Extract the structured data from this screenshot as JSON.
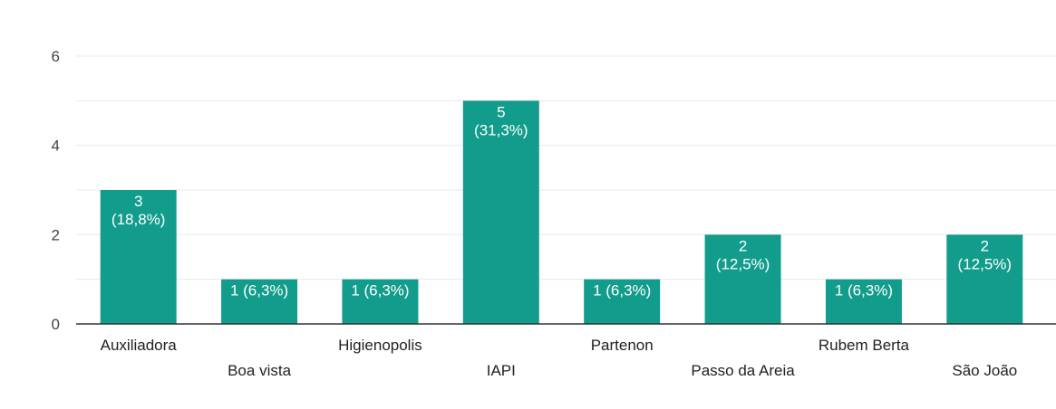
{
  "chart_data": {
    "type": "bar",
    "categories": [
      "Auxiliadora",
      "Boa vista",
      "Higienopolis",
      "IAPI",
      "Partenon",
      "Passo da Areia",
      "Rubem Berta",
      "São João"
    ],
    "values": [
      3,
      1,
      1,
      5,
      1,
      2,
      1,
      2
    ],
    "bar_labels": [
      [
        "3",
        "(18,8%)"
      ],
      [
        "1 (6,3%)"
      ],
      [
        "1 (6,3%)"
      ],
      [
        "5",
        "(31,3%)"
      ],
      [
        "1 (6,3%)"
      ],
      [
        "2",
        "(12,5%)"
      ],
      [
        "1 (6,3%)"
      ],
      [
        "2",
        "(12,5%)"
      ]
    ],
    "yticks": [
      "0",
      "2",
      "4",
      "6"
    ],
    "ylim": [
      0,
      6
    ],
    "grid": true,
    "colors": {
      "bar": "#129c8c",
      "grid": "#e8e8e8",
      "axis": "#333333"
    }
  }
}
